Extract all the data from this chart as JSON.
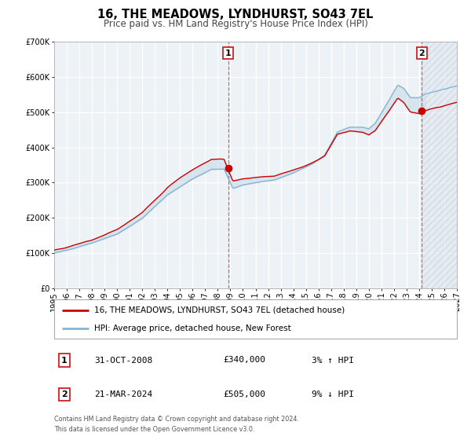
{
  "title": "16, THE MEADOWS, LYNDHURST, SO43 7EL",
  "subtitle": "Price paid vs. HM Land Registry's House Price Index (HPI)",
  "ylim": [
    0,
    700000
  ],
  "yticks": [
    0,
    100000,
    200000,
    300000,
    400000,
    500000,
    600000,
    700000
  ],
  "xlim_start": 1995.0,
  "xlim_end": 2027.0,
  "xtick_years": [
    1995,
    1996,
    1997,
    1998,
    1999,
    2000,
    2001,
    2002,
    2003,
    2004,
    2005,
    2006,
    2007,
    2008,
    2009,
    2010,
    2011,
    2012,
    2013,
    2014,
    2015,
    2016,
    2017,
    2018,
    2019,
    2020,
    2021,
    2022,
    2023,
    2024,
    2025,
    2026,
    2027
  ],
  "sale1_x": 2008.83,
  "sale1_y": 340000,
  "sale1_label": "1",
  "sale2_x": 2024.22,
  "sale2_y": 505000,
  "sale2_label": "2",
  "line1_color": "#cc0000",
  "line2_color": "#88b4d4",
  "fill_color": "#c8dce8",
  "hatch_color": "#c8d4dc",
  "future_cutoff": 2024.5,
  "legend1_text": "16, THE MEADOWS, LYNDHURST, SO43 7EL (detached house)",
  "legend2_text": "HPI: Average price, detached house, New Forest",
  "annotation1_date": "31-OCT-2008",
  "annotation1_price": "£340,000",
  "annotation1_hpi": "3% ↑ HPI",
  "annotation2_date": "21-MAR-2024",
  "annotation2_price": "£505,000",
  "annotation2_hpi": "9% ↓ HPI",
  "footer_text": "Contains HM Land Registry data © Crown copyright and database right 2024.\nThis data is licensed under the Open Government Licence v3.0."
}
